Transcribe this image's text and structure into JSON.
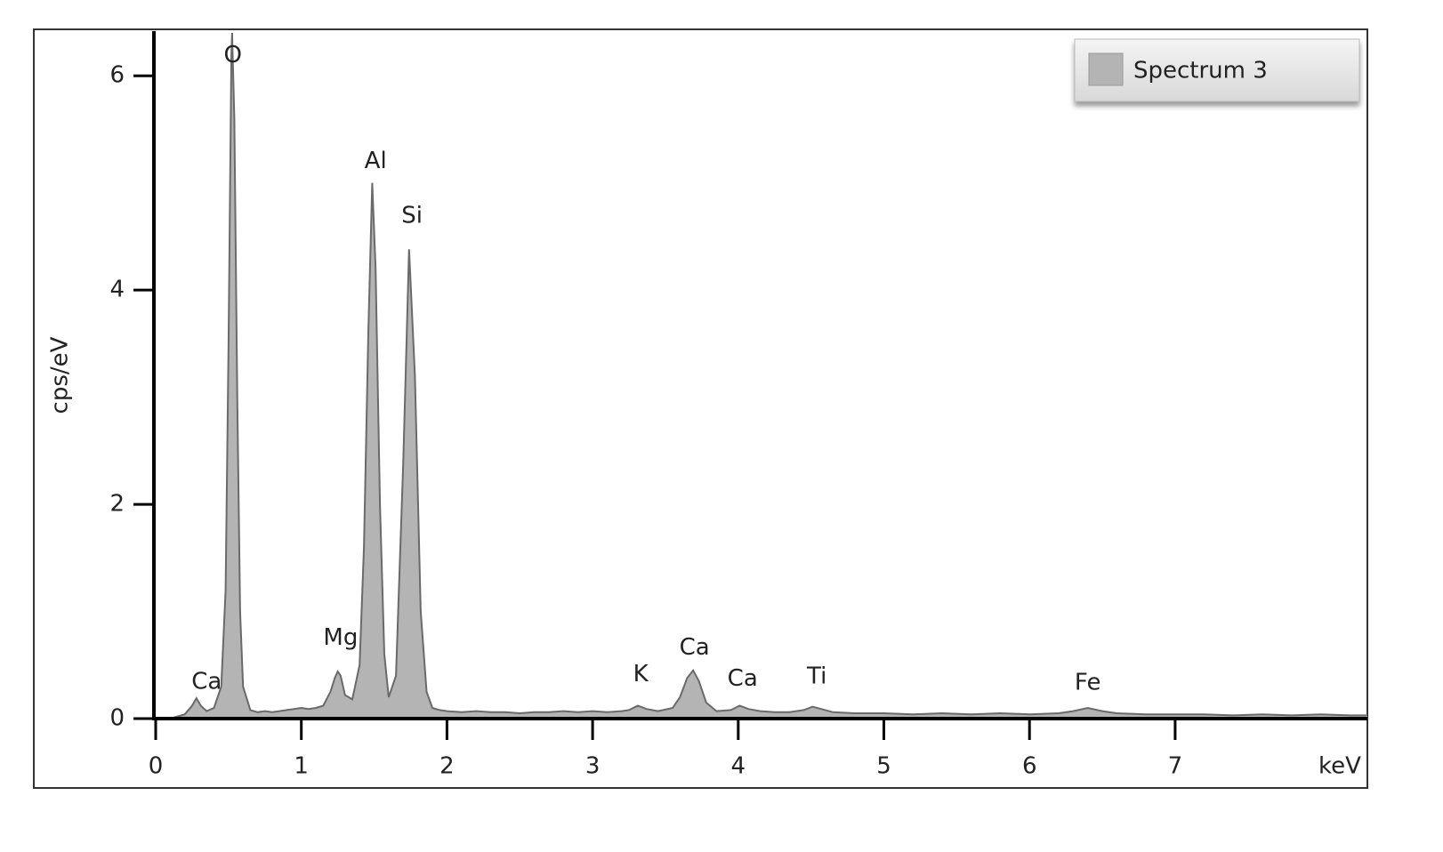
{
  "chart_data": {
    "type": "area",
    "ylabel": "cps/eV",
    "xlabel": "keV",
    "xlim": [
      0,
      8.32
    ],
    "xticks": [
      0,
      1,
      2,
      3,
      4,
      5,
      6,
      7
    ],
    "ylim": [
      0,
      6.4
    ],
    "yticks": [
      0,
      2,
      4,
      6
    ],
    "legend": "top-right",
    "x": [
      0.1,
      0.15,
      0.2,
      0.25,
      0.28,
      0.31,
      0.35,
      0.4,
      0.45,
      0.48,
      0.5,
      0.52,
      0.525,
      0.54,
      0.56,
      0.58,
      0.6,
      0.65,
      0.7,
      0.75,
      0.8,
      0.85,
      0.9,
      0.95,
      1.0,
      1.05,
      1.1,
      1.15,
      1.2,
      1.23,
      1.25,
      1.27,
      1.3,
      1.35,
      1.4,
      1.43,
      1.46,
      1.487,
      1.51,
      1.54,
      1.57,
      1.6,
      1.65,
      1.7,
      1.74,
      1.78,
      1.82,
      1.86,
      1.9,
      1.95,
      2.0,
      2.1,
      2.2,
      2.3,
      2.4,
      2.5,
      2.6,
      2.7,
      2.8,
      2.9,
      3.0,
      3.1,
      3.2,
      3.25,
      3.31,
      3.37,
      3.45,
      3.55,
      3.6,
      3.65,
      3.69,
      3.73,
      3.78,
      3.85,
      3.95,
      4.01,
      4.07,
      4.15,
      4.25,
      4.35,
      4.45,
      4.51,
      4.57,
      4.65,
      4.8,
      5.0,
      5.2,
      5.4,
      5.6,
      5.8,
      6.0,
      6.2,
      6.3,
      6.4,
      6.5,
      6.6,
      6.8,
      7.0,
      7.2,
      7.4,
      7.6,
      7.8,
      8.0,
      8.2,
      8.32
    ],
    "series": [
      {
        "name": "Spectrum 3",
        "color": "#b4b4b4",
        "line_color": "#6a6a6a",
        "values": [
          0.0,
          0.02,
          0.04,
          0.12,
          0.19,
          0.12,
          0.07,
          0.1,
          0.3,
          1.2,
          3.5,
          6.2,
          6.4,
          5.6,
          3.0,
          1.0,
          0.3,
          0.08,
          0.06,
          0.07,
          0.06,
          0.07,
          0.08,
          0.09,
          0.1,
          0.09,
          0.1,
          0.12,
          0.25,
          0.38,
          0.44,
          0.4,
          0.22,
          0.18,
          0.5,
          1.6,
          3.6,
          5.0,
          4.2,
          2.0,
          0.6,
          0.2,
          0.4,
          2.4,
          4.38,
          3.2,
          1.0,
          0.25,
          0.1,
          0.08,
          0.07,
          0.06,
          0.07,
          0.06,
          0.06,
          0.05,
          0.06,
          0.06,
          0.07,
          0.06,
          0.07,
          0.06,
          0.07,
          0.08,
          0.12,
          0.09,
          0.07,
          0.1,
          0.2,
          0.38,
          0.45,
          0.35,
          0.15,
          0.07,
          0.08,
          0.12,
          0.09,
          0.07,
          0.06,
          0.06,
          0.08,
          0.11,
          0.09,
          0.06,
          0.05,
          0.05,
          0.04,
          0.05,
          0.04,
          0.05,
          0.04,
          0.05,
          0.07,
          0.1,
          0.07,
          0.05,
          0.04,
          0.04,
          0.04,
          0.03,
          0.04,
          0.03,
          0.04,
          0.03,
          0.03
        ]
      }
    ],
    "annotations": [
      {
        "text": "Ca",
        "x": 0.35,
        "y": 0.34
      },
      {
        "text": "O",
        "x": 0.53,
        "y": 6.19
      },
      {
        "text": "Mg",
        "x": 1.27,
        "y": 0.75
      },
      {
        "text": "Al",
        "x": 1.51,
        "y": 5.2
      },
      {
        "text": "Si",
        "x": 1.76,
        "y": 4.69
      },
      {
        "text": "K",
        "x": 3.33,
        "y": 0.41
      },
      {
        "text": "Ca",
        "x": 3.7,
        "y": 0.66
      },
      {
        "text": "Ca",
        "x": 4.03,
        "y": 0.37
      },
      {
        "text": "Ti",
        "x": 4.54,
        "y": 0.39
      },
      {
        "text": "Fe",
        "x": 6.4,
        "y": 0.33
      }
    ]
  }
}
